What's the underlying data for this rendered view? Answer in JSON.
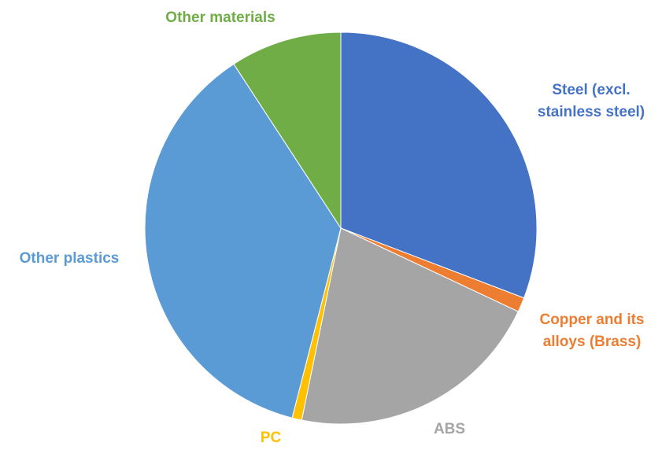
{
  "chart_data": {
    "type": "pie",
    "title": "",
    "categories": [
      "Steel (excl. stainless steel)",
      "Copper and its alloys (Brass)",
      "ABS",
      "PC",
      "Other plastics",
      "Other materials"
    ],
    "values": [
      30.8,
      1.2,
      21.2,
      0.8,
      36.8,
      9.2
    ],
    "colors": [
      "#4472C4",
      "#ED7D31",
      "#A5A5A5",
      "#FFC000",
      "#5B9BD5",
      "#70AD47"
    ],
    "label_lines": [
      [
        "Steel (excl.",
        "stainless steel)"
      ],
      [
        "Copper and its",
        "alloys (Brass)"
      ],
      [
        "ABS"
      ],
      [
        "PC"
      ],
      [
        "Other plastics"
      ],
      [
        "Other materials"
      ]
    ],
    "start_angle": "12 o'clock",
    "direction": "clockwise",
    "legend": "none"
  }
}
